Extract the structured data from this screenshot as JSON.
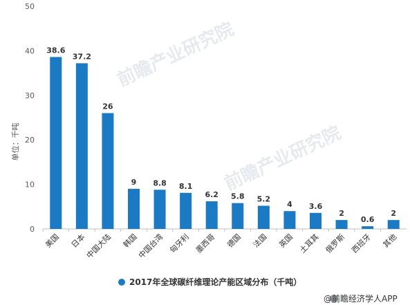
{
  "chart_data": {
    "type": "bar",
    "categories": [
      "美国",
      "日本",
      "中国大陆",
      "韩国",
      "中国台湾",
      "匈牙利",
      "墨西哥",
      "德国",
      "法国",
      "英国",
      "土耳其",
      "俄罗斯",
      "西班牙",
      "其他"
    ],
    "values": [
      38.6,
      37.2,
      26,
      9,
      8.8,
      8.1,
      6.2,
      5.8,
      5.2,
      4,
      3.6,
      2,
      0.6,
      2
    ],
    "value_labels": [
      "38.6",
      "37.2",
      "26",
      "9",
      "8.8",
      "8.1",
      "6.2",
      "5.8",
      "5.2",
      "4",
      "3.6",
      "2",
      "0.6",
      "2"
    ],
    "ylabel": "单位：千吨",
    "ylim": [
      0,
      50
    ],
    "yticks": [
      "0",
      "10",
      "20",
      "30",
      "40",
      "50"
    ],
    "grid": false,
    "legend": {
      "label": "2017年全球碳纤维理论产能区域分布（千吨）",
      "position": "bottom"
    },
    "bar_color": "#1a7bc4"
  },
  "watermark": {
    "text": "前瞻产业研究院"
  },
  "credit": {
    "text": "@前瞻经济学人APP"
  }
}
